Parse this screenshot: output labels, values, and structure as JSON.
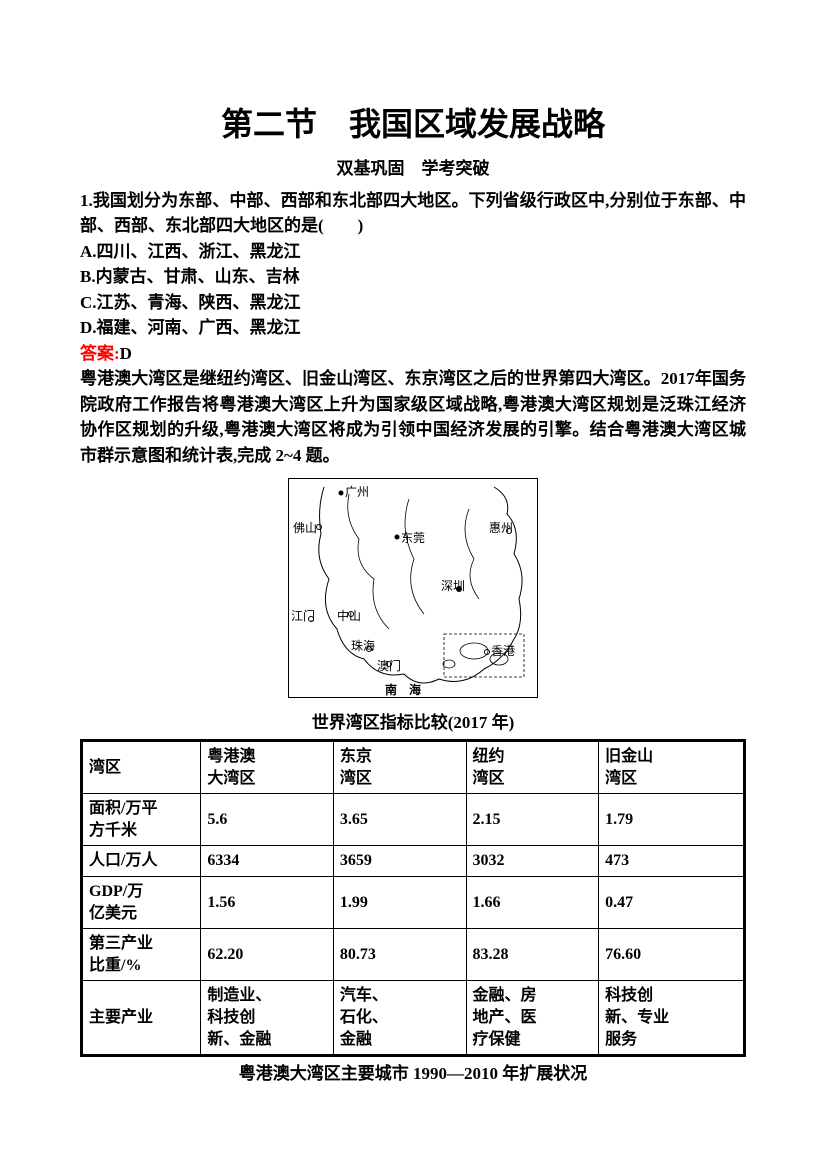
{
  "title": "第二节　我国区域发展战略",
  "subtitle": "双基巩固　学考突破",
  "q1": {
    "stem": "1.我国划分为东部、中部、西部和东北部四大地区。下列省级行政区中,分别位于东部、中部、西部、东北部四大地区的是(　　)",
    "A": "A.四川、江西、浙江、黑龙江",
    "B": "B.内蒙古、甘肃、山东、吉林",
    "C": "C.江苏、青海、陕西、黑龙江",
    "D": "D.福建、河南、广西、黑龙江",
    "ans_label": "答案:",
    "ans_val": "D"
  },
  "intro": "粤港澳大湾区是继纽约湾区、旧金山湾区、东京湾区之后的世界第四大湾区。2017年国务院政府工作报告将粤港澳大湾区上升为国家级区域战略,粤港澳大湾区规划是泛珠江经济协作区规划的升级,粤港澳大湾区将成为引领中国经济发展的引擎。结合粤港澳大湾区城市群示意图和统计表,完成 2~4 题。",
  "map": {
    "cities": {
      "guangzhou": "广州",
      "foshan": "佛山",
      "dongguan": "东莞",
      "huizhou": "惠州",
      "shenzhen": "深圳",
      "zhongshan": "中山",
      "jiangmen": "江门",
      "zhuhai": "珠海",
      "aomen": "澳门",
      "xianggang": "香港",
      "nanhai": "南　海"
    }
  },
  "caption1": "世界湾区指标比较(2017 年)",
  "table1": {
    "headers": [
      "湾区",
      "粤港澳\n大湾区",
      "东京\n湾区",
      "纽约\n湾区",
      "旧金山\n湾区"
    ],
    "rows": [
      [
        "面积/万平\n方千米",
        "5.6",
        "3.65",
        "2.15",
        "1.79"
      ],
      [
        "人口/万人",
        "6334",
        "3659",
        "3032",
        "473"
      ],
      [
        "GDP/万\n亿美元",
        "1.56",
        "1.99",
        "1.66",
        "0.47"
      ],
      [
        "第三产业\n比重/%",
        "62.20",
        "80.73",
        "83.28",
        "76.60"
      ],
      [
        "主要产业",
        "制造业、\n科技创\n新、金融",
        "汽车、\n石化、\n金融",
        "金融、房\n地产、医\n疗保健",
        "科技创\n新、专业\n服务"
      ]
    ]
  },
  "caption2": "粤港澳大湾区主要城市 1990—2010 年扩展状况"
}
